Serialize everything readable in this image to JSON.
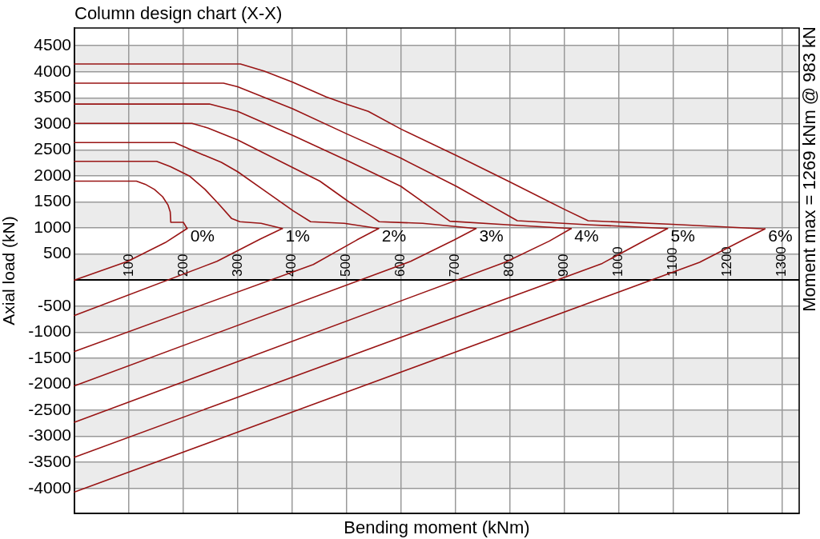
{
  "chart_data": {
    "type": "line",
    "title": "Column design chart (X-X)",
    "xlabel": "Bending moment (kNm)",
    "ylabel": "Axial load (kN)",
    "annotations": [
      "Moment max = 1269 kNm @ 983 kN"
    ],
    "xlim": [
      0,
      1332
    ],
    "ylim": [
      -4480,
      4840
    ],
    "xticks": [
      100,
      200,
      300,
      400,
      500,
      600,
      700,
      800,
      900,
      1000,
      1100,
      1200,
      1300
    ],
    "yticks": [
      -4000,
      -3500,
      -3000,
      -2500,
      -2000,
      -1500,
      -1000,
      -500,
      500,
      1000,
      1500,
      2000,
      2500,
      3000,
      3500,
      4000,
      4500
    ],
    "grid": true,
    "legend": false,
    "marker": "none",
    "bands": [
      {
        "axis": "y",
        "from": 4000,
        "to": 4500,
        "color": "#ebebeb"
      },
      {
        "axis": "y",
        "from": 3000,
        "to": 3500,
        "color": "#ebebeb"
      },
      {
        "axis": "y",
        "from": 2000,
        "to": 2500,
        "color": "#ebebeb"
      },
      {
        "axis": "y",
        "from": 1000,
        "to": 1500,
        "color": "#ebebeb"
      },
      {
        "axis": "y",
        "from": 0,
        "to": 500,
        "color": "#ebebeb"
      },
      {
        "axis": "y",
        "from": -1000,
        "to": -500,
        "color": "#ebebeb"
      },
      {
        "axis": "y",
        "from": -2000,
        "to": -1500,
        "color": "#ebebeb"
      },
      {
        "axis": "y",
        "from": -3000,
        "to": -2500,
        "color": "#ebebeb"
      },
      {
        "axis": "y",
        "from": -4000,
        "to": -3500,
        "color": "#ebebeb"
      }
    ],
    "series": [
      {
        "name": "0%",
        "color": "#991414",
        "x": [
          0,
          114,
          130,
          147,
          162,
          172,
          176,
          177,
          200,
          207
        ],
        "values": [
          1900,
          1900,
          1840,
          1740,
          1600,
          1440,
          1310,
          1110,
          1110,
          990
        ]
      },
      {
        "color": "#991414",
        "x": [
          0,
          98,
          167,
          207
        ],
        "values": [
          0,
          360,
          720,
          990
        ]
      },
      {
        "name": "1%",
        "color": "#991414",
        "x": [
          0,
          151,
          176,
          211,
          240,
          267,
          289,
          304,
          343,
          382
        ],
        "values": [
          2280,
          2280,
          2180,
          2000,
          1740,
          1440,
          1180,
          1120,
          1090,
          990
        ]
      },
      {
        "color": "#991414",
        "x": [
          0,
          262,
          342,
          382
        ],
        "values": [
          -680,
          360,
          790,
          990
        ]
      },
      {
        "name": "2%",
        "color": "#991414",
        "x": [
          0,
          184,
          210,
          270,
          300,
          353,
          402,
          434,
          496,
          559
        ],
        "values": [
          2640,
          2640,
          2520,
          2260,
          2080,
          1690,
          1330,
          1120,
          1090,
          990
        ]
      },
      {
        "color": "#991414",
        "x": [
          0,
          439,
          519,
          559
        ],
        "values": [
          -1370,
          300,
          770,
          990
        ]
      },
      {
        "name": "3%",
        "color": "#991414",
        "x": [
          0,
          216,
          245,
          300,
          401,
          451,
          502,
          549,
          560,
          640,
          738
        ],
        "values": [
          3010,
          3010,
          2920,
          2690,
          2160,
          1900,
          1520,
          1200,
          1120,
          1090,
          990
        ]
      },
      {
        "color": "#991414",
        "x": [
          0,
          618,
          698,
          738
        ],
        "values": [
          -2030,
          360,
          770,
          990
        ]
      },
      {
        "name": "4%",
        "color": "#991414",
        "x": [
          0,
          248,
          300,
          401,
          502,
          600,
          690,
          800,
          913
        ],
        "values": [
          3380,
          3380,
          3240,
          2780,
          2290,
          1800,
          1130,
          1060,
          990
        ]
      },
      {
        "color": "#991414",
        "x": [
          0,
          793,
          873,
          913
        ],
        "values": [
          -2730,
          350,
          750,
          990
        ]
      },
      {
        "name": "5%",
        "color": "#991414",
        "x": [
          0,
          274,
          300,
          401,
          502,
          600,
          702,
          814,
          950,
          1090
        ],
        "values": [
          3780,
          3780,
          3710,
          3290,
          2800,
          2340,
          1800,
          1140,
          1060,
          990
        ]
      },
      {
        "color": "#991414",
        "x": [
          0,
          970,
          1050,
          1090
        ],
        "values": [
          -3400,
          320,
          770,
          990
        ]
      },
      {
        "name": "6%",
        "color": "#991414",
        "x": [
          0,
          305,
          349,
          401,
          462,
          502,
          540,
          600,
          702,
          801,
          900,
          944,
          1099,
          1269
        ],
        "values": [
          4150,
          4150,
          4010,
          3800,
          3520,
          3370,
          3240,
          2900,
          2390,
          1880,
          1360,
          1140,
          1070,
          983
        ]
      },
      {
        "color": "#991414",
        "x": [
          0,
          1149,
          1229,
          1269
        ],
        "values": [
          -4070,
          340,
          770,
          983
        ]
      }
    ]
  }
}
